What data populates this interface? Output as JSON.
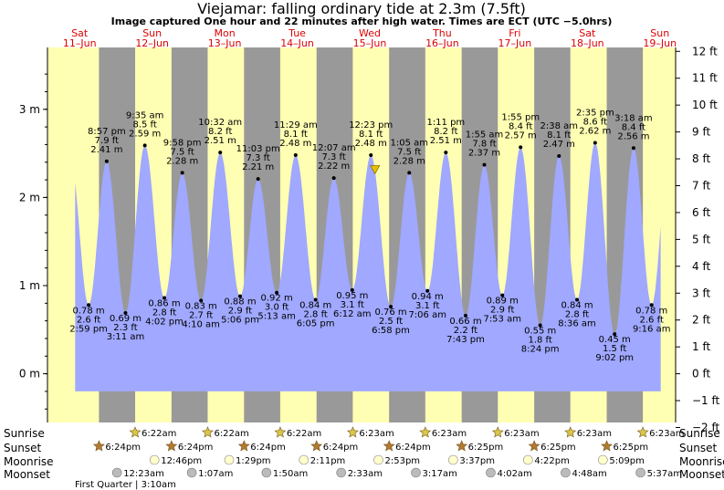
{
  "title": "Viejamar: falling  ordinary tide at 2.3m (7.5ft)",
  "subtitle": "Image captured One hour and 22 minutes after high water. Times are ECT (UTC −5.0hrs)",
  "colors": {
    "night": "#999999",
    "day": "#ffffb3",
    "water": "#a0a8ff",
    "day_label": "#dd0000",
    "star": "#b07a30",
    "moon": "#ffffcc",
    "moonset": "#bbbbbb"
  },
  "days": [
    {
      "dow": "Sat",
      "date": "11–Jun"
    },
    {
      "dow": "Sun",
      "date": "12–Jun"
    },
    {
      "dow": "Mon",
      "date": "13–Jun"
    },
    {
      "dow": "Tue",
      "date": "14–Jun"
    },
    {
      "dow": "Wed",
      "date": "15–Jun"
    },
    {
      "dow": "Thu",
      "date": "16–Jun"
    },
    {
      "dow": "Fri",
      "date": "17–Jun"
    },
    {
      "dow": "Sat",
      "date": "18–Jun"
    },
    {
      "dow": "Sun",
      "date": "19–Jun"
    }
  ],
  "chart_data": {
    "type": "area",
    "title": "Viejamar: falling  ordinary tide at 2.3m (7.5ft)",
    "y_left": {
      "label": "m",
      "ticks": [
        "0 m",
        "1 m",
        "2 m",
        "3 m"
      ],
      "range_m": [
        -0.65,
        3.65
      ]
    },
    "y_right": {
      "label": "ft",
      "ticks": [
        "−2 ft",
        "−1 ft",
        "0 ft",
        "1 ft",
        "2 ft",
        "3 ft",
        "4 ft",
        "5 ft",
        "6 ft",
        "7 ft",
        "8 ft",
        "9 ft",
        "10 ft",
        "11 ft",
        "12 ft"
      ]
    },
    "x_range_hours": [
      0,
      208
    ],
    "tides": [
      {
        "day": 0,
        "hour": 14.98,
        "m": "0.78 m",
        "ft": "2.6 ft",
        "time": "2:59 pm",
        "height": 0.78
      },
      {
        "day": 0,
        "hour": 20.95,
        "m": "2.41 m",
        "ft": "7.9 ft",
        "time": "8:57 pm",
        "height": 2.41
      },
      {
        "day": 1,
        "hour": 27.18,
        "m": "0.69 m",
        "ft": "2.3 ft",
        "time": "3:11 am",
        "height": 0.69
      },
      {
        "day": 1,
        "hour": 33.58,
        "m": "2.59 m",
        "ft": "8.5 ft",
        "time": "9:35 am",
        "height": 2.59
      },
      {
        "day": 1,
        "hour": 40.03,
        "m": "0.86 m",
        "ft": "2.8 ft",
        "time": "4:02 pm",
        "height": 0.86
      },
      {
        "day": 1,
        "hour": 45.97,
        "m": "2.28 m",
        "ft": "7.5 ft",
        "time": "9:58 pm",
        "height": 2.28
      },
      {
        "day": 2,
        "hour": 52.17,
        "m": "0.83 m",
        "ft": "2.7 ft",
        "time": "4:10 am",
        "height": 0.83
      },
      {
        "day": 2,
        "hour": 58.53,
        "m": "2.51 m",
        "ft": "8.2 ft",
        "time": "10:32 am",
        "height": 2.51
      },
      {
        "day": 2,
        "hour": 65.1,
        "m": "0.88 m",
        "ft": "2.9 ft",
        "time": "5:06 pm",
        "height": 0.88
      },
      {
        "day": 2,
        "hour": 71.05,
        "m": "2.21 m",
        "ft": "7.3 ft",
        "time": "11:03 pm",
        "height": 2.21
      },
      {
        "day": 3,
        "hour": 77.22,
        "m": "0.92 m",
        "ft": "3.0 ft",
        "time": "5:13 am",
        "height": 0.92
      },
      {
        "day": 3,
        "hour": 83.48,
        "m": "2.48 m",
        "ft": "8.1 ft",
        "time": "11:29 am",
        "height": 2.48
      },
      {
        "day": 3,
        "hour": 90.08,
        "m": "0.84 m",
        "ft": "2.8 ft",
        "time": "6:05 pm",
        "height": 0.84
      },
      {
        "day": 4,
        "hour": 96.12,
        "m": "2.22 m",
        "ft": "7.3 ft",
        "time": "12:07 am",
        "height": 2.22
      },
      {
        "day": 4,
        "hour": 102.2,
        "m": "0.95 m",
        "ft": "3.1 ft",
        "time": "6:12 am",
        "height": 0.95
      },
      {
        "day": 4,
        "hour": 108.38,
        "m": "2.48 m",
        "ft": "8.1 ft",
        "time": "12:23 pm",
        "height": 2.48
      },
      {
        "day": 4,
        "hour": 114.97,
        "m": "0.76 m",
        "ft": "2.5 ft",
        "time": "6:58 pm",
        "height": 0.76
      },
      {
        "day": 5,
        "hour": 121.08,
        "m": "2.28 m",
        "ft": "7.5 ft",
        "time": "1:05 am",
        "height": 2.28
      },
      {
        "day": 5,
        "hour": 127.1,
        "m": "0.94 m",
        "ft": "3.1 ft",
        "time": "7:06 am",
        "height": 0.94
      },
      {
        "day": 5,
        "hour": 133.18,
        "m": "2.51 m",
        "ft": "8.2 ft",
        "time": "1:11 pm",
        "height": 2.51
      },
      {
        "day": 5,
        "hour": 139.72,
        "m": "0.66 m",
        "ft": "2.2 ft",
        "time": "7:43 pm",
        "height": 0.66
      },
      {
        "day": 6,
        "hour": 145.92,
        "m": "2.37 m",
        "ft": "7.8 ft",
        "time": "1:55 am",
        "height": 2.37
      },
      {
        "day": 6,
        "hour": 151.88,
        "m": "0.89 m",
        "ft": "2.9 ft",
        "time": "7:53 am",
        "height": 0.89
      },
      {
        "day": 6,
        "hour": 157.92,
        "m": "2.57 m",
        "ft": "8.4 ft",
        "time": "1:55 pm",
        "height": 2.57
      },
      {
        "day": 6,
        "hour": 164.4,
        "m": "0.55 m",
        "ft": "1.8 ft",
        "time": "8:24 pm",
        "height": 0.55
      },
      {
        "day": 7,
        "hour": 170.63,
        "m": "2.47 m",
        "ft": "8.1 ft",
        "time": "2:38 am",
        "height": 2.47
      },
      {
        "day": 7,
        "hour": 176.6,
        "m": "0.84 m",
        "ft": "2.8 ft",
        "time": "8:36 am",
        "height": 0.84
      },
      {
        "day": 7,
        "hour": 182.58,
        "m": "2.62 m",
        "ft": "8.6 ft",
        "time": "2:35 pm",
        "height": 2.62
      },
      {
        "day": 7,
        "hour": 189.03,
        "m": "0.45 m",
        "ft": "1.5 ft",
        "time": "9:02 pm",
        "height": 0.45
      },
      {
        "day": 8,
        "hour": 195.3,
        "m": "2.56 m",
        "ft": "8.4 ft",
        "time": "3:18 am",
        "height": 2.56
      },
      {
        "day": 8,
        "hour": 201.27,
        "m": "0.78 m",
        "ft": "2.6 ft",
        "time": "9:16 am",
        "height": 0.78
      }
    ],
    "current": {
      "hour": 109.75,
      "height": 2.3
    }
  },
  "rows": {
    "sunrise": "Sunrise",
    "sunset": "Sunset",
    "moonrise": "Moonrise",
    "moonset": "Moonset"
  },
  "sunrise": [
    {
      "hour": 30.37,
      "t": "6:22am"
    },
    {
      "hour": 54.37,
      "t": "6:22am"
    },
    {
      "hour": 78.37,
      "t": "6:22am"
    },
    {
      "hour": 102.38,
      "t": "6:23am"
    },
    {
      "hour": 126.38,
      "t": "6:23am"
    },
    {
      "hour": 150.38,
      "t": "6:23am"
    },
    {
      "hour": 174.38,
      "t": "6:23am"
    },
    {
      "hour": 198.38,
      "t": "6:23am"
    }
  ],
  "sunset": [
    {
      "hour": 18.4,
      "t": "6:24pm"
    },
    {
      "hour": 42.4,
      "t": "6:24pm"
    },
    {
      "hour": 66.4,
      "t": "6:24pm"
    },
    {
      "hour": 90.4,
      "t": "6:24pm"
    },
    {
      "hour": 114.4,
      "t": "6:24pm"
    },
    {
      "hour": 138.42,
      "t": "6:25pm"
    },
    {
      "hour": 162.42,
      "t": "6:25pm"
    },
    {
      "hour": 186.42,
      "t": "6:25pm"
    }
  ],
  "moonrise": [
    {
      "hour": 36.77,
      "t": "12:46pm"
    },
    {
      "hour": 61.48,
      "t": "1:29pm"
    },
    {
      "hour": 86.18,
      "t": "2:11pm"
    },
    {
      "hour": 110.88,
      "t": "2:53pm"
    },
    {
      "hour": 135.62,
      "t": "3:37pm"
    },
    {
      "hour": 160.37,
      "t": "4:22pm"
    },
    {
      "hour": 185.15,
      "t": "5:09pm"
    }
  ],
  "moonset": [
    {
      "hour": 24.38,
      "t": "12:23am"
    },
    {
      "hour": 49.12,
      "t": "1:07am"
    },
    {
      "hour": 73.83,
      "t": "1:50am"
    },
    {
      "hour": 98.55,
      "t": "2:33am"
    },
    {
      "hour": 123.28,
      "t": "3:17am"
    },
    {
      "hour": 148.03,
      "t": "4:02am"
    },
    {
      "hour": 172.8,
      "t": "4:48am"
    },
    {
      "hour": 197.62,
      "t": "5:37am"
    }
  ],
  "moon_phase": "First Quarter | 3:10am"
}
